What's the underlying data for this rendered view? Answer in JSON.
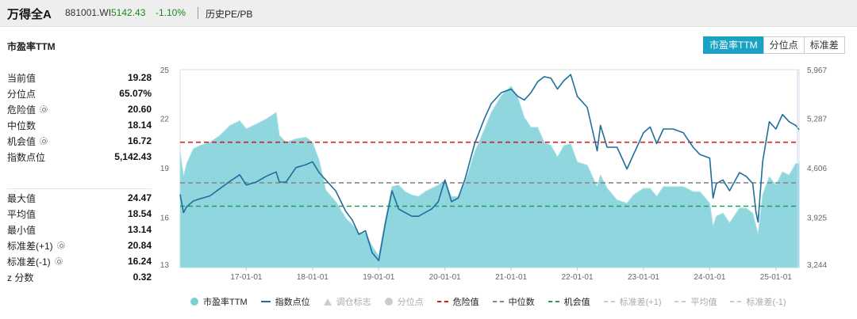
{
  "header": {
    "name": "万得全A",
    "code": "881001.WI",
    "price": "5142.43",
    "change": "-1.10%",
    "tab": "历史PE/PB"
  },
  "section_title": "市盈率TTM",
  "buttons": [
    {
      "label": "市盈率TTM",
      "active": true
    },
    {
      "label": "分位点",
      "active": false
    },
    {
      "label": "标准差",
      "active": false
    }
  ],
  "stats_top": [
    {
      "label": "当前值",
      "value": "19.28",
      "gear": false
    },
    {
      "label": "分位点",
      "value": "65.07%",
      "gear": false
    },
    {
      "label": "危险值",
      "value": "20.60",
      "gear": true
    },
    {
      "label": "中位数",
      "value": "18.14",
      "gear": false
    },
    {
      "label": "机会值",
      "value": "16.72",
      "gear": true
    },
    {
      "label": "指数点位",
      "value": "5,142.43",
      "gear": false
    }
  ],
  "stats_bottom": [
    {
      "label": "最大值",
      "value": "24.47",
      "gear": false
    },
    {
      "label": "平均值",
      "value": "18.54",
      "gear": false
    },
    {
      "label": "最小值",
      "value": "13.14",
      "gear": false
    },
    {
      "label": "标准差(+1)",
      "value": "20.84",
      "gear": true
    },
    {
      "label": "标准差(-1)",
      "value": "16.24",
      "gear": true
    },
    {
      "label": "z 分数",
      "value": "0.32",
      "gear": false
    }
  ],
  "legend": [
    {
      "label": "市盈率TTM",
      "type": "dot",
      "color": "#7ccfd8",
      "text_color": "#222"
    },
    {
      "label": "指数点位",
      "type": "line",
      "color": "#1f6e9c",
      "text_color": "#222"
    },
    {
      "label": "调仓标志",
      "type": "tri",
      "color": "#cccccc",
      "text_color": "#aaaaaa"
    },
    {
      "label": "分位点",
      "type": "dot",
      "color": "#cccccc",
      "text_color": "#aaaaaa"
    },
    {
      "label": "危险值",
      "type": "dash",
      "color": "#cc2222",
      "text_color": "#222"
    },
    {
      "label": "中位数",
      "type": "dash",
      "color": "#888888",
      "text_color": "#222"
    },
    {
      "label": "机会值",
      "type": "dash",
      "color": "#22a05a",
      "text_color": "#222"
    },
    {
      "label": "标准差(+1)",
      "type": "dash",
      "color": "#cccccc",
      "text_color": "#aaaaaa"
    },
    {
      "label": "平均值",
      "type": "dash",
      "color": "#cccccc",
      "text_color": "#aaaaaa"
    },
    {
      "label": "标准差(-1)",
      "type": "dash",
      "color": "#cccccc",
      "text_color": "#aaaaaa"
    }
  ],
  "chart_data": {
    "type": "area",
    "x_ticks": [
      "17-01-01",
      "18-01-01",
      "19-01-01",
      "20-01-01",
      "21-01-01",
      "22-01-01",
      "23-01-01",
      "24-01-01",
      "25-01-01"
    ],
    "x_tick_t": [
      2017.0,
      2018.0,
      2019.0,
      2020.0,
      2021.0,
      2022.0,
      2023.0,
      2024.0,
      2025.0
    ],
    "x_range": [
      2016.0,
      2025.35
    ],
    "y_left_ticks": [
      "25",
      "22",
      "19",
      "16",
      "13"
    ],
    "y_left_range": [
      13,
      25
    ],
    "y_right_ticks": [
      "5,967",
      "5,287",
      "4,606",
      "3,925",
      "3,244"
    ],
    "y_right_range": [
      3244,
      5967
    ],
    "reference_lines": [
      {
        "name": "危险值",
        "value": 20.6,
        "color": "#cc2222"
      },
      {
        "name": "中位数",
        "value": 18.14,
        "color": "#888888"
      },
      {
        "name": "机会值",
        "value": 16.72,
        "color": "#22a05a"
      }
    ],
    "series": [
      {
        "name": "市盈率TTM",
        "axis": "left",
        "color": "#7ccfd8",
        "x": [
          2016.0,
          2016.05,
          2016.1,
          2016.2,
          2016.3,
          2016.45,
          2016.6,
          2016.75,
          2016.9,
          2017.0,
          2017.15,
          2017.3,
          2017.45,
          2017.5,
          2017.6,
          2017.75,
          2017.9,
          2018.0,
          2018.1,
          2018.2,
          2018.35,
          2018.5,
          2018.6,
          2018.7,
          2018.8,
          2018.9,
          2019.0,
          2019.1,
          2019.2,
          2019.3,
          2019.4,
          2019.5,
          2019.6,
          2019.7,
          2019.8,
          2019.9,
          2020.0,
          2020.1,
          2020.2,
          2020.3,
          2020.45,
          2020.6,
          2020.7,
          2020.85,
          2021.0,
          2021.1,
          2021.2,
          2021.3,
          2021.4,
          2021.5,
          2021.6,
          2021.7,
          2021.8,
          2021.9,
          2022.0,
          2022.15,
          2022.3,
          2022.35,
          2022.45,
          2022.6,
          2022.75,
          2022.85,
          2023.0,
          2023.1,
          2023.2,
          2023.3,
          2023.45,
          2023.6,
          2023.75,
          2023.85,
          2024.0,
          2024.05,
          2024.1,
          2024.2,
          2024.3,
          2024.45,
          2024.55,
          2024.65,
          2024.7,
          2024.73,
          2024.8,
          2024.9,
          2025.0,
          2025.1,
          2025.2,
          2025.3,
          2025.35
        ],
        "values": [
          20.0,
          18.5,
          19.3,
          20.2,
          20.4,
          20.6,
          21.0,
          21.6,
          21.9,
          21.4,
          21.7,
          22.0,
          22.4,
          21.0,
          20.6,
          20.8,
          20.9,
          20.6,
          19.5,
          17.7,
          17.0,
          16.0,
          15.6,
          15.1,
          15.1,
          14.3,
          13.7,
          15.9,
          17.9,
          18.0,
          17.6,
          17.4,
          17.3,
          17.6,
          17.8,
          18.0,
          18.3,
          17.3,
          17.3,
          18.1,
          20.0,
          21.4,
          22.4,
          23.4,
          24.0,
          23.3,
          22.1,
          21.5,
          21.5,
          20.6,
          20.4,
          19.7,
          20.4,
          20.5,
          19.4,
          19.2,
          17.9,
          18.6,
          17.8,
          17.1,
          16.9,
          17.4,
          17.8,
          17.8,
          17.3,
          17.9,
          17.9,
          17.9,
          17.6,
          17.6,
          16.9,
          15.5,
          16.1,
          16.3,
          15.7,
          16.6,
          16.6,
          16.3,
          15.5,
          15.0,
          17.4,
          18.5,
          18.0,
          18.8,
          18.6,
          19.3,
          19.3
        ]
      },
      {
        "name": "指数点位",
        "axis": "right",
        "color": "#1f6e9c",
        "x": [
          2016.0,
          2016.05,
          2016.1,
          2016.2,
          2016.3,
          2016.45,
          2016.6,
          2016.75,
          2016.9,
          2017.0,
          2017.15,
          2017.3,
          2017.45,
          2017.5,
          2017.6,
          2017.75,
          2017.9,
          2018.0,
          2018.1,
          2018.2,
          2018.35,
          2018.5,
          2018.6,
          2018.7,
          2018.8,
          2018.9,
          2019.0,
          2019.1,
          2019.2,
          2019.3,
          2019.4,
          2019.5,
          2019.6,
          2019.7,
          2019.8,
          2019.9,
          2020.0,
          2020.1,
          2020.2,
          2020.3,
          2020.45,
          2020.6,
          2020.7,
          2020.85,
          2021.0,
          2021.1,
          2021.2,
          2021.3,
          2021.4,
          2021.5,
          2021.6,
          2021.7,
          2021.8,
          2021.9,
          2022.0,
          2022.15,
          2022.3,
          2022.35,
          2022.45,
          2022.6,
          2022.75,
          2022.85,
          2023.0,
          2023.1,
          2023.2,
          2023.3,
          2023.45,
          2023.6,
          2023.75,
          2023.85,
          2024.0,
          2024.05,
          2024.1,
          2024.2,
          2024.3,
          2024.45,
          2024.55,
          2024.65,
          2024.7,
          2024.73,
          2024.8,
          2024.9,
          2025.0,
          2025.1,
          2025.2,
          2025.3,
          2025.35
        ],
        "values": [
          4250,
          4000,
          4080,
          4160,
          4190,
          4230,
          4330,
          4430,
          4520,
          4380,
          4420,
          4500,
          4560,
          4420,
          4420,
          4620,
          4660,
          4700,
          4550,
          4450,
          4300,
          4020,
          3900,
          3700,
          3750,
          3450,
          3340,
          3850,
          4300,
          4050,
          4000,
          3950,
          3950,
          4000,
          4050,
          4150,
          4450,
          4150,
          4200,
          4450,
          4950,
          5300,
          5500,
          5650,
          5700,
          5600,
          5550,
          5650,
          5800,
          5870,
          5850,
          5700,
          5820,
          5900,
          5600,
          5450,
          4850,
          5200,
          4900,
          4900,
          4600,
          4800,
          5100,
          5180,
          4950,
          5150,
          5150,
          5100,
          4900,
          4800,
          4750,
          4200,
          4400,
          4450,
          4300,
          4550,
          4500,
          4400,
          4000,
          3870,
          4700,
          5250,
          5150,
          5350,
          5250,
          5200,
          5142
        ]
      }
    ],
    "xlabel": "",
    "ylabel": ""
  }
}
